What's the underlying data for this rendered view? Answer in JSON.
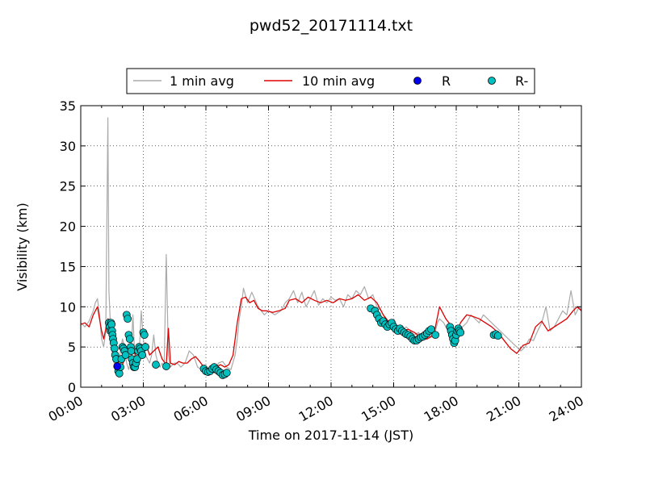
{
  "chart_data": {
    "type": "line",
    "title": "pwd52_20171114.txt",
    "xlabel": "Time on 2017-11-14 (JST)",
    "ylabel": "Visibility (km)",
    "xlim": [
      0,
      24
    ],
    "ylim": [
      0,
      35
    ],
    "grid": true,
    "legend_position": "top",
    "x_tick_labels": [
      "00:00",
      "03:00",
      "06:00",
      "09:00",
      "12:00",
      "15:00",
      "18:00",
      "21:00",
      "24:00"
    ],
    "y_tick_labels": [
      "0",
      "5",
      "10",
      "15",
      "20",
      "25",
      "30",
      "35"
    ],
    "colors": {
      "one_min": "#aaaaaa",
      "ten_min": "#dd0000",
      "r": "#0000ee",
      "r_minus": "#00c0c0"
    },
    "series": [
      {
        "name": "1 min avg",
        "kind": "line",
        "x": [
          0.0,
          0.2,
          0.4,
          0.6,
          0.7,
          0.8,
          0.9,
          1.0,
          1.1,
          1.2,
          1.3,
          1.35,
          1.4,
          1.45,
          1.5,
          1.6,
          1.7,
          1.8,
          1.9,
          2.0,
          2.1,
          2.2,
          2.3,
          2.4,
          2.5,
          2.6,
          2.7,
          2.8,
          2.9,
          3.0,
          3.1,
          3.2,
          3.3,
          3.4,
          3.5,
          3.6,
          3.7,
          3.8,
          3.9,
          4.0,
          4.1,
          4.2,
          4.3,
          4.4,
          4.5,
          4.6,
          4.7,
          4.8,
          5.0,
          5.2,
          5.4,
          5.6,
          5.8,
          6.0,
          6.2,
          6.4,
          6.6,
          6.8,
          7.0,
          7.2,
          7.4,
          7.5,
          7.6,
          7.7,
          7.8,
          8.0,
          8.2,
          8.5,
          8.8,
          9.0,
          9.3,
          9.6,
          9.8,
          10.0,
          10.2,
          10.4,
          10.6,
          10.8,
          11.0,
          11.2,
          11.4,
          11.6,
          11.8,
          12.0,
          12.2,
          12.4,
          12.6,
          12.8,
          13.0,
          13.2,
          13.4,
          13.6,
          13.8,
          14.0,
          14.2,
          14.4,
          14.6,
          14.8,
          15.0,
          15.2,
          15.4,
          15.6,
          15.8,
          16.0,
          16.2,
          16.4,
          16.6,
          16.8,
          17.0,
          17.1,
          17.2,
          17.4,
          17.6,
          17.8,
          18.0,
          18.1,
          18.3,
          18.5,
          18.7,
          18.9,
          19.1,
          19.3,
          19.5,
          19.7,
          19.9,
          20.1,
          20.3,
          20.5,
          20.7,
          20.9,
          21.1,
          21.3,
          21.5,
          21.7,
          21.9,
          22.1,
          22.3,
          22.5,
          22.7,
          22.9,
          23.1,
          23.3,
          23.5,
          23.7,
          23.9,
          24.0
        ],
        "y": [
          8.0,
          7.5,
          8.2,
          9.5,
          10.5,
          11.0,
          9.0,
          6.0,
          5.0,
          7.0,
          33.5,
          12.0,
          9.0,
          6.0,
          4.5,
          3.0,
          2.0,
          2.5,
          4.5,
          6.0,
          5.0,
          3.0,
          2.2,
          3.5,
          9.0,
          3.0,
          2.5,
          4.0,
          9.5,
          6.0,
          4.0,
          3.5,
          3.0,
          4.0,
          6.5,
          4.0,
          3.0,
          2.5,
          3.0,
          2.5,
          16.5,
          4.0,
          2.5,
          2.8,
          3.0,
          3.0,
          2.8,
          2.5,
          3.0,
          4.5,
          4.0,
          2.5,
          2.2,
          2.3,
          2.2,
          1.8,
          3.0,
          3.2,
          2.5,
          2.2,
          4.0,
          6.0,
          8.5,
          10.0,
          12.3,
          10.5,
          11.8,
          10.0,
          9.0,
          9.5,
          9.0,
          9.5,
          10.5,
          11.0,
          12.0,
          10.5,
          11.8,
          10.0,
          11.0,
          12.0,
          10.2,
          11.0,
          10.5,
          11.2,
          10.8,
          11.0,
          10.0,
          11.5,
          11.0,
          12.0,
          11.5,
          12.5,
          11.0,
          11.5,
          10.0,
          9.5,
          8.5,
          8.0,
          8.5,
          7.5,
          7.0,
          7.5,
          7.0,
          6.5,
          6.8,
          5.8,
          6.0,
          6.2,
          7.0,
          8.0,
          8.5,
          8.0,
          7.0,
          6.5,
          7.0,
          6.0,
          7.5,
          8.0,
          9.0,
          8.5,
          8.0,
          9.0,
          8.5,
          8.0,
          7.5,
          7.0,
          6.5,
          6.0,
          5.5,
          5.0,
          4.5,
          5.0,
          6.0,
          5.8,
          7.0,
          8.0,
          10.0,
          7.0,
          7.5,
          8.5,
          9.5,
          9.0,
          12.0,
          9.0,
          10.0,
          9.5
        ]
      },
      {
        "name": "10 min avg",
        "kind": "line",
        "x": [
          0.0,
          0.2,
          0.4,
          0.6,
          0.8,
          1.0,
          1.1,
          1.3,
          1.5,
          1.7,
          1.9,
          2.1,
          2.3,
          2.5,
          2.7,
          2.9,
          3.1,
          3.3,
          3.5,
          3.7,
          3.9,
          4.1,
          4.2,
          4.3,
          4.5,
          4.7,
          4.9,
          5.1,
          5.3,
          5.5,
          5.7,
          5.9,
          6.1,
          6.3,
          6.5,
          6.7,
          6.9,
          7.1,
          7.3,
          7.5,
          7.7,
          7.9,
          8.1,
          8.3,
          8.5,
          8.7,
          8.9,
          9.2,
          9.5,
          9.8,
          10.0,
          10.3,
          10.6,
          10.9,
          11.2,
          11.5,
          11.8,
          12.1,
          12.4,
          12.7,
          13.0,
          13.3,
          13.6,
          13.9,
          14.2,
          14.5,
          14.8,
          15.1,
          15.4,
          15.7,
          16.0,
          16.3,
          16.6,
          16.9,
          17.0,
          17.2,
          17.5,
          17.8,
          18.0,
          18.2,
          18.5,
          18.8,
          19.1,
          19.4,
          19.7,
          20.0,
          20.3,
          20.6,
          20.9,
          21.2,
          21.5,
          21.8,
          22.1,
          22.4,
          22.7,
          23.0,
          23.3,
          23.6,
          23.8,
          24.0
        ],
        "y": [
          7.8,
          8.0,
          7.5,
          9.0,
          10.0,
          7.0,
          6.0,
          8.5,
          7.0,
          4.0,
          2.2,
          3.5,
          5.0,
          4.8,
          3.5,
          4.8,
          5.5,
          4.0,
          4.5,
          5.0,
          3.5,
          2.8,
          7.3,
          3.0,
          2.8,
          3.2,
          3.0,
          3.0,
          3.5,
          3.8,
          3.2,
          2.5,
          2.3,
          2.2,
          2.5,
          2.8,
          2.5,
          2.8,
          4.0,
          8.0,
          11.0,
          11.2,
          10.5,
          10.8,
          9.8,
          9.5,
          9.5,
          9.3,
          9.5,
          9.8,
          10.8,
          11.0,
          10.5,
          11.2,
          10.8,
          10.5,
          10.8,
          10.5,
          11.0,
          10.8,
          11.0,
          11.5,
          10.8,
          11.2,
          10.5,
          9.0,
          8.0,
          7.8,
          7.0,
          7.2,
          6.8,
          6.2,
          6.0,
          6.5,
          7.5,
          10.0,
          8.5,
          7.5,
          6.5,
          8.0,
          9.0,
          8.8,
          8.5,
          8.0,
          7.5,
          6.8,
          5.8,
          4.8,
          4.2,
          5.2,
          5.5,
          7.5,
          8.2,
          7.0,
          7.5,
          8.0,
          8.5,
          9.5,
          10.0,
          9.5
        ]
      },
      {
        "name": "R",
        "kind": "scatter",
        "x": [
          1.75
        ],
        "y": [
          2.6
        ]
      },
      {
        "name": "R-",
        "kind": "scatter",
        "x": [
          1.35,
          1.38,
          1.42,
          1.45,
          1.48,
          1.5,
          1.52,
          1.55,
          1.58,
          1.62,
          1.65,
          1.7,
          1.8,
          1.85,
          1.9,
          1.95,
          2.0,
          2.05,
          2.1,
          2.15,
          2.2,
          2.25,
          2.3,
          2.35,
          2.4,
          2.42,
          2.45,
          2.5,
          2.55,
          2.6,
          2.65,
          2.7,
          2.75,
          2.8,
          2.85,
          2.9,
          2.95,
          3.0,
          3.05,
          3.1,
          3.6,
          4.1,
          5.9,
          6.0,
          6.1,
          6.2,
          6.3,
          6.4,
          6.5,
          6.6,
          6.7,
          6.8,
          6.9,
          7.0,
          13.9,
          14.1,
          14.2,
          14.3,
          14.4,
          14.5,
          14.6,
          14.7,
          14.8,
          14.9,
          15.0,
          15.1,
          15.2,
          15.3,
          15.4,
          15.5,
          15.6,
          15.7,
          15.8,
          15.9,
          16.0,
          16.1,
          16.2,
          16.3,
          16.4,
          16.5,
          16.6,
          16.7,
          16.8,
          17.0,
          17.7,
          17.75,
          17.8,
          17.85,
          17.9,
          17.95,
          18.0,
          18.05,
          18.1,
          18.15,
          18.2,
          19.8,
          19.9,
          20.0
        ],
        "y": [
          8.0,
          7.5,
          7.0,
          8.0,
          7.8,
          7.0,
          6.5,
          6.0,
          5.5,
          4.8,
          4.0,
          3.5,
          2.0,
          1.7,
          2.5,
          3.5,
          5.0,
          4.8,
          4.5,
          4.0,
          9.0,
          8.5,
          6.5,
          6.0,
          5.0,
          4.5,
          3.5,
          3.0,
          2.5,
          2.5,
          3.0,
          3.5,
          4.5,
          5.0,
          4.8,
          4.5,
          4.0,
          6.8,
          6.5,
          5.0,
          2.8,
          2.6,
          2.3,
          2.0,
          1.9,
          2.0,
          2.3,
          2.5,
          2.2,
          2.0,
          1.8,
          1.5,
          1.6,
          1.8,
          9.8,
          9.5,
          9.0,
          8.5,
          8.0,
          8.2,
          7.8,
          7.5,
          7.8,
          8.0,
          7.5,
          7.2,
          7.0,
          7.3,
          7.0,
          6.8,
          6.6,
          6.5,
          6.3,
          6.0,
          5.8,
          5.8,
          6.0,
          6.2,
          6.3,
          6.5,
          6.7,
          7.0,
          7.2,
          6.5,
          7.5,
          7.0,
          6.5,
          6.0,
          5.5,
          5.8,
          6.5,
          7.0,
          7.3,
          7.0,
          6.8,
          6.5,
          6.6,
          6.4
        ]
      }
    ]
  }
}
